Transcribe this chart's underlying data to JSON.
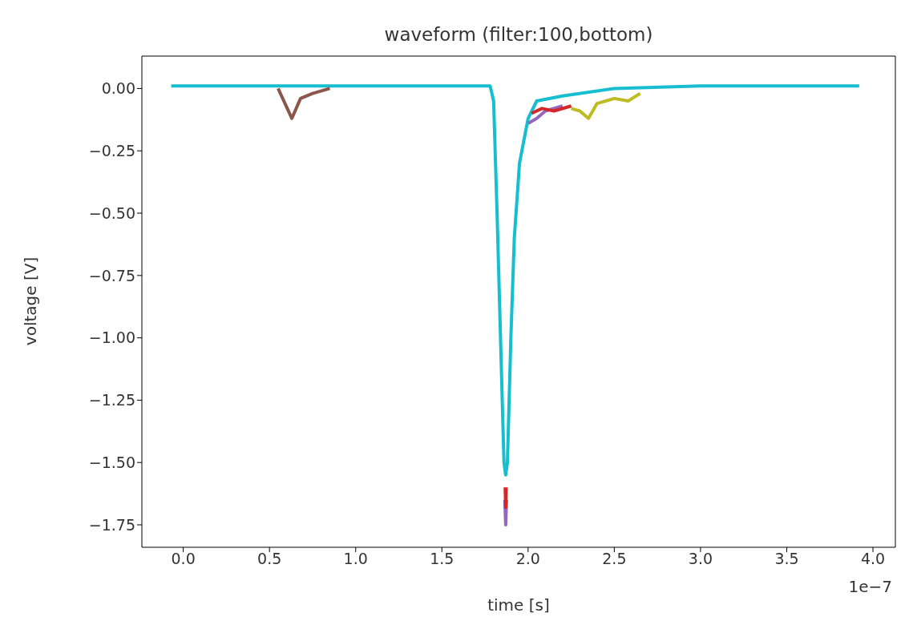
{
  "chart_data": {
    "type": "line",
    "title": "waveform (filter:100,bottom)",
    "xlabel": "time [s]",
    "ylabel": "voltage [V]",
    "annotations": [
      "1e−7"
    ],
    "xlim": [
      -0.24,
      4.13
    ],
    "ylim": [
      -1.84,
      0.13
    ],
    "xticks": [
      {
        "value": 0,
        "label": "0.0"
      },
      {
        "value": 0.5,
        "label": "0.5"
      },
      {
        "value": 1,
        "label": "1.0"
      },
      {
        "value": 1.5,
        "label": "1.5"
      },
      {
        "value": 2,
        "label": "2.0"
      },
      {
        "value": 2.5,
        "label": "2.5"
      },
      {
        "value": 3,
        "label": "3.0"
      },
      {
        "value": 3.5,
        "label": "3.5"
      },
      {
        "value": 4,
        "label": "4.0"
      }
    ],
    "yticks": [
      {
        "value": 0,
        "label": "0.00"
      },
      {
        "value": -0.25,
        "label": "−0.25"
      },
      {
        "value": -0.5,
        "label": "−0.50"
      },
      {
        "value": -0.75,
        "label": "−0.75"
      },
      {
        "value": -1,
        "label": "−1.00"
      },
      {
        "value": -1.25,
        "label": "−1.25"
      },
      {
        "value": -1.5,
        "label": "−1.50"
      },
      {
        "value": -1.75,
        "label": "−1.75"
      }
    ],
    "series": [
      {
        "color": "#17becf",
        "x": [
          -0.07,
          0.5,
          1.0,
          1.5,
          1.78,
          1.8,
          1.82,
          1.84,
          1.86,
          1.87,
          1.88,
          1.9,
          1.92,
          1.95,
          2.0,
          2.05,
          2.2,
          2.5,
          3.0,
          3.5,
          3.92
        ],
        "values": [
          0.01,
          0.01,
          0.01,
          0.01,
          0.01,
          -0.05,
          -0.5,
          -1.0,
          -1.5,
          -1.55,
          -1.5,
          -1.0,
          -0.6,
          -0.3,
          -0.12,
          -0.05,
          -0.03,
          0.0,
          0.01,
          0.01,
          0.01
        ]
      },
      {
        "color": "#9467bd",
        "x": [
          1.865,
          1.87,
          1.875,
          1.95,
          2.0,
          2.05,
          2.1,
          2.2
        ],
        "values": [
          -1.65,
          -1.75,
          -1.65,
          null,
          -0.14,
          -0.12,
          -0.09,
          -0.07
        ]
      },
      {
        "color": "#d62728",
        "x": [
          1.867,
          1.87,
          1.873,
          1.95,
          2.02,
          2.08,
          2.15,
          2.25
        ],
        "values": [
          -1.6,
          -1.68,
          -1.6,
          null,
          -0.1,
          -0.08,
          -0.09,
          -0.07
        ]
      },
      {
        "color": "#bcbd22",
        "x": [
          2.25,
          2.3,
          2.35,
          2.4,
          2.5,
          2.58,
          2.65
        ],
        "values": [
          -0.08,
          -0.09,
          -0.12,
          -0.06,
          -0.04,
          -0.05,
          -0.02
        ]
      },
      {
        "color": "#8c564b",
        "x": [
          0.55,
          0.63,
          0.68,
          0.75,
          0.85
        ],
        "values": [
          0.0,
          -0.12,
          -0.04,
          -0.02,
          0.0
        ]
      }
    ]
  }
}
